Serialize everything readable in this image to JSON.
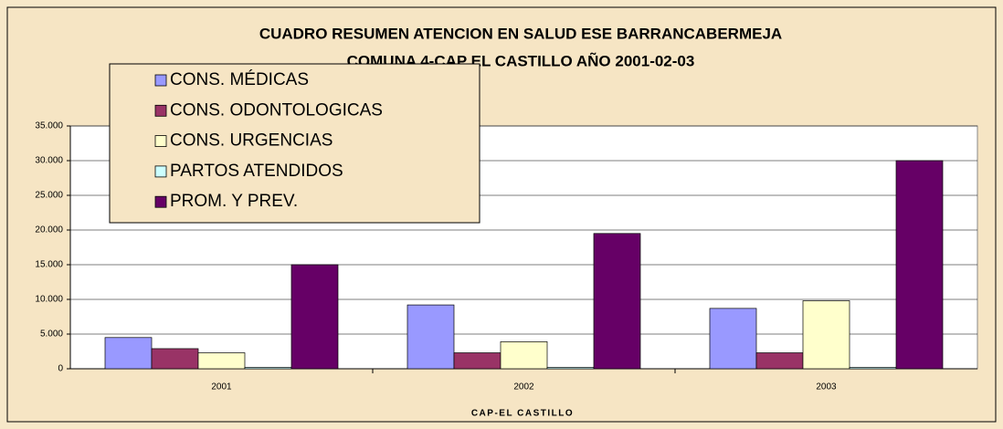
{
  "chart_data": {
    "type": "bar",
    "title": "CUADRO RESUMEN ATENCION EN SALUD ESE BARRANCABERMEJA",
    "subtitle": "COMUNA 4-CAP EL CASTILLO AÑO 2001-02-03",
    "x_label": "CAP-EL CASTILLO",
    "categories": [
      "2001",
      "2002",
      "2003"
    ],
    "series": [
      {
        "name": "CONS. MÉDICAS",
        "color": "#9999ff",
        "values": [
          4500,
          9200,
          8700
        ]
      },
      {
        "name": "CONS. ODONTOLOGICAS",
        "color": "#993366",
        "values": [
          2900,
          2300,
          2300
        ]
      },
      {
        "name": "CONS. URGENCIAS",
        "color": "#ffffcc",
        "values": [
          2300,
          3900,
          9800
        ]
      },
      {
        "name": "PARTOS ATENDIDOS",
        "color": "#ccffff",
        "values": [
          200,
          200,
          200
        ]
      },
      {
        "name": "PROM. Y PREV.",
        "color": "#660066",
        "values": [
          15000,
          19500,
          30000
        ]
      }
    ],
    "ylim": [
      0,
      35000
    ],
    "yticks": [
      0,
      {
        "value": 5000,
        "label": "5.000"
      },
      {
        "value": 10000,
        "label": "10.000"
      },
      {
        "value": 15000,
        "label": "15.000"
      },
      {
        "value": 20000,
        "label": "20.000"
      },
      {
        "value": 25000,
        "label": "25.000"
      },
      {
        "value": 30000,
        "label": "30.000"
      },
      {
        "value": 35000,
        "label": "35.000"
      }
    ],
    "grid": true,
    "legend": "upper left"
  }
}
